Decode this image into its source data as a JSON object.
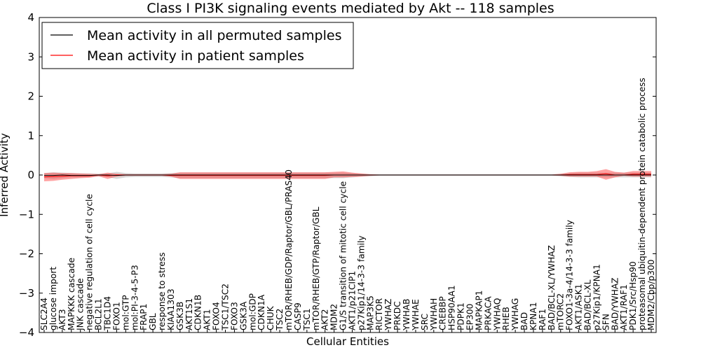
{
  "chart_data": {
    "type": "line",
    "title": "Class I PI3K signaling events mediated by Akt -- 118 samples",
    "xlabel": "Cellular Entities",
    "ylabel": "Inferred Activity",
    "ylim": [
      -4,
      4
    ],
    "yticks": [
      -4,
      -3,
      -2,
      -1,
      0,
      1,
      2,
      3,
      4
    ],
    "grid": false,
    "legend_position": "top-left",
    "legend": [
      {
        "label": "Mean activity in all permuted samples",
        "color": "#000000"
      },
      {
        "label": "Mean activity in patient samples",
        "color": "#ff0000"
      }
    ],
    "categories": [
      "SLC2A4",
      "glucose import",
      "AKT3",
      "MAPKKK cascade",
      "JNK cascade",
      "negative regulation of cell cycle",
      "BCL2L1",
      "TBC1D4",
      "FOXO1",
      "mol:GTP",
      "mol:PI-3-4-5-P3",
      "FRAP1",
      "GBL",
      "response to stress",
      "KIAA1303",
      "GSK3B",
      "AKT1S1",
      "CDKN1B",
      "AKT1",
      "FOXO4",
      "TSC1/TSC2",
      "FOXO3",
      "GSK3A",
      "mol:GDP",
      "CDKN1A",
      "CHUK",
      "TSC2",
      "mTOR/RHEB/GDP/Raptor/GBL/PRAS40",
      "CASP9",
      "TSC1",
      "mTOR/RHEB/GTP/Raptor/GBL",
      "AKT2",
      "MDM2",
      "G1/S transition of mitotic cell cycle",
      "AKT1/p21CIP1",
      "p27Kip1/14-3-3 family",
      "MAP3K5",
      "RICTOR",
      "YWHAZ",
      "PRKDC",
      "YWHAB",
      "YWHAE",
      "SRC",
      "YWHAH",
      "CREBBP",
      "HSP90AA1",
      "PDPK1",
      "EP300",
      "MAPKAP1",
      "PRKACA",
      "YWHAQ",
      "RHEB",
      "YWHAG",
      "BAD",
      "KPNA1",
      "RAF1",
      "BAD/BCL-XL/YWHAZ",
      "mTORC2",
      "FOXO1-3a-4/14-3-3 family",
      "AKT1/ASK1",
      "BAD/BCL-XL",
      "p27Kip1/KPNA1",
      "SFN",
      "BAD/YWHAZ",
      "AKT1/RAF1",
      "PDK1/Src/Hsp90",
      "proteasomal ubiquitin-dependent protein catabolic process",
      "MDM2/Cbp/p300"
    ],
    "series": [
      {
        "name": "Mean activity in all permuted samples",
        "color": "#000000",
        "values": [
          -0.01,
          -0.01,
          0.0,
          -0.01,
          -0.01,
          -0.01,
          0.0,
          0.0,
          -0.01,
          0.0,
          0.0,
          0.0,
          0.0,
          0.0,
          0.0,
          0.0,
          0.0,
          0.0,
          0.0,
          0.0,
          0.0,
          0.0,
          0.0,
          0.0,
          0.0,
          0.0,
          0.0,
          0.0,
          0.0,
          0.0,
          0.0,
          0.0,
          0.0,
          0.0,
          0.0,
          0.0,
          0.0,
          0.0,
          0.0,
          0.0,
          0.0,
          0.0,
          0.0,
          0.0,
          0.0,
          0.0,
          0.0,
          0.0,
          0.0,
          0.0,
          0.0,
          0.0,
          0.0,
          0.0,
          0.0,
          0.0,
          0.0,
          0.0,
          0.0,
          0.0,
          0.0,
          0.0,
          0.0,
          0.0,
          0.0,
          0.0,
          0.0,
          0.0
        ],
        "band_lower": [
          -0.08,
          -0.1,
          -0.08,
          -0.06,
          -0.06,
          -0.05,
          -0.04,
          -0.05,
          -0.1,
          -0.06,
          -0.05,
          -0.05,
          -0.05,
          -0.05,
          -0.06,
          -0.08,
          -0.08,
          -0.08,
          -0.08,
          -0.08,
          -0.08,
          -0.08,
          -0.08,
          -0.08,
          -0.08,
          -0.08,
          -0.08,
          -0.08,
          -0.08,
          -0.08,
          -0.08,
          -0.08,
          -0.08,
          -0.08,
          -0.06,
          -0.04,
          -0.03,
          -0.02,
          -0.02,
          -0.02,
          -0.02,
          -0.02,
          -0.02,
          -0.02,
          -0.02,
          -0.02,
          -0.02,
          -0.02,
          -0.02,
          -0.02,
          -0.02,
          -0.02,
          -0.02,
          -0.02,
          -0.02,
          -0.02,
          -0.02,
          -0.03,
          -0.05,
          -0.06,
          -0.06,
          -0.06,
          -0.06,
          -0.06,
          -0.06,
          -0.06,
          -0.06,
          -0.06
        ],
        "band_upper": [
          0.05,
          0.07,
          0.06,
          0.05,
          0.04,
          0.04,
          0.03,
          0.04,
          0.08,
          0.05,
          0.04,
          0.04,
          0.04,
          0.04,
          0.05,
          0.06,
          0.06,
          0.06,
          0.06,
          0.06,
          0.06,
          0.06,
          0.06,
          0.06,
          0.06,
          0.06,
          0.06,
          0.06,
          0.06,
          0.06,
          0.06,
          0.06,
          0.06,
          0.06,
          0.05,
          0.03,
          0.02,
          0.02,
          0.02,
          0.02,
          0.02,
          0.02,
          0.02,
          0.02,
          0.02,
          0.02,
          0.02,
          0.02,
          0.02,
          0.02,
          0.02,
          0.02,
          0.02,
          0.02,
          0.02,
          0.02,
          0.02,
          0.03,
          0.05,
          0.06,
          0.06,
          0.06,
          0.06,
          0.06,
          0.06,
          0.06,
          0.06,
          0.06
        ]
      },
      {
        "name": "Mean activity in patient samples",
        "color": "#ff0000",
        "values": [
          -0.05,
          -0.04,
          -0.03,
          -0.02,
          -0.02,
          -0.02,
          0.0,
          -0.02,
          0.0,
          0.0,
          0.0,
          0.0,
          0.0,
          0.0,
          -0.01,
          -0.01,
          -0.01,
          -0.01,
          -0.01,
          -0.01,
          -0.01,
          -0.01,
          -0.01,
          -0.01,
          -0.01,
          -0.01,
          -0.01,
          -0.01,
          -0.01,
          -0.01,
          -0.01,
          -0.01,
          0.0,
          0.0,
          0.0,
          0.0,
          0.0,
          0.0,
          0.0,
          0.0,
          0.0,
          0.0,
          0.0,
          0.0,
          0.0,
          0.0,
          0.0,
          0.0,
          0.0,
          0.0,
          0.0,
          0.0,
          0.0,
          0.0,
          0.0,
          0.0,
          0.0,
          0.0,
          0.01,
          0.01,
          0.01,
          0.01,
          0.03,
          0.0,
          0.0,
          0.02,
          0.02,
          0.02
        ],
        "band_lower": [
          -0.16,
          -0.15,
          -0.12,
          -0.1,
          -0.08,
          -0.07,
          -0.03,
          -0.1,
          -0.04,
          -0.02,
          -0.02,
          -0.02,
          -0.02,
          -0.02,
          -0.04,
          -0.1,
          -0.1,
          -0.1,
          -0.1,
          -0.1,
          -0.1,
          -0.1,
          -0.1,
          -0.1,
          -0.1,
          -0.1,
          -0.1,
          -0.1,
          -0.1,
          -0.1,
          -0.1,
          -0.1,
          -0.06,
          -0.06,
          -0.05,
          -0.04,
          -0.02,
          -0.01,
          -0.01,
          -0.01,
          -0.01,
          -0.01,
          -0.01,
          -0.01,
          -0.01,
          -0.01,
          -0.01,
          -0.01,
          -0.01,
          -0.01,
          -0.01,
          -0.01,
          -0.01,
          -0.01,
          -0.01,
          -0.01,
          -0.01,
          -0.02,
          -0.04,
          -0.04,
          -0.04,
          -0.04,
          -0.12,
          -0.06,
          -0.02,
          -0.04,
          -0.04,
          -0.04
        ],
        "band_upper": [
          0.05,
          0.06,
          0.05,
          0.05,
          0.04,
          0.03,
          0.02,
          0.06,
          0.03,
          0.02,
          0.02,
          0.02,
          0.02,
          0.02,
          0.03,
          0.07,
          0.07,
          0.07,
          0.07,
          0.07,
          0.07,
          0.07,
          0.07,
          0.07,
          0.07,
          0.07,
          0.07,
          0.07,
          0.07,
          0.07,
          0.07,
          0.07,
          0.08,
          0.09,
          0.06,
          0.04,
          0.02,
          0.01,
          0.01,
          0.01,
          0.01,
          0.01,
          0.01,
          0.01,
          0.01,
          0.01,
          0.01,
          0.01,
          0.01,
          0.01,
          0.01,
          0.01,
          0.01,
          0.01,
          0.01,
          0.01,
          0.01,
          0.03,
          0.07,
          0.08,
          0.08,
          0.1,
          0.15,
          0.08,
          0.06,
          0.1,
          0.1,
          0.1
        ]
      }
    ]
  }
}
